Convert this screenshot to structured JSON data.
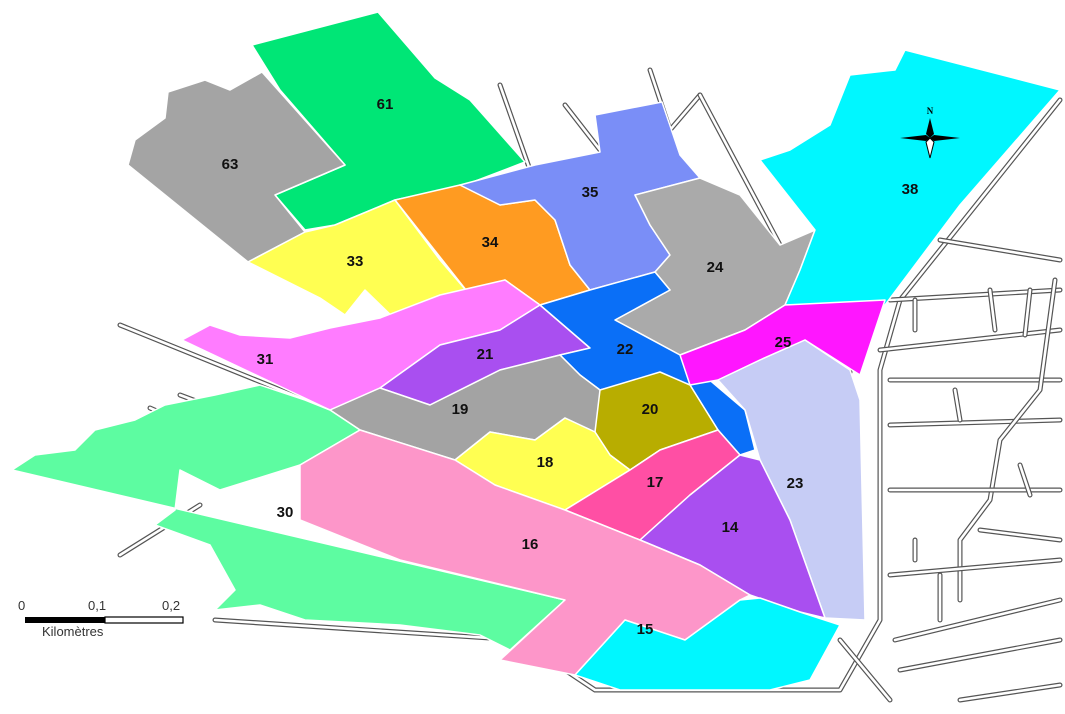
{
  "map": {
    "districts": [
      {
        "id": "61",
        "label": "61",
        "color": "#00e676"
      },
      {
        "id": "63",
        "label": "63",
        "color": "#a4a4a4"
      },
      {
        "id": "33",
        "label": "33",
        "color": "#ffff52"
      },
      {
        "id": "34",
        "label": "34",
        "color": "#ff9b21"
      },
      {
        "id": "35",
        "label": "35",
        "color": "#7a8ef7"
      },
      {
        "id": "24",
        "label": "24",
        "color": "#aaaaaa"
      },
      {
        "id": "38",
        "label": "38",
        "color": "#00f7ff"
      },
      {
        "id": "31",
        "label": "31",
        "color": "#ff7cff"
      },
      {
        "id": "21",
        "label": "21",
        "color": "#a94ff0"
      },
      {
        "id": "22",
        "label": "22",
        "color": "#0a6ff7"
      },
      {
        "id": "25",
        "label": "25",
        "color": "#ff16ff"
      },
      {
        "id": "19",
        "label": "19",
        "color": "#a3a3a3"
      },
      {
        "id": "20",
        "label": "20",
        "color": "#b8ad00"
      },
      {
        "id": "18",
        "label": "18",
        "color": "#ffff52"
      },
      {
        "id": "17",
        "label": "17",
        "color": "#ff4fa4"
      },
      {
        "id": "23",
        "label": "23",
        "color": "#c6ccf5"
      },
      {
        "id": "14",
        "label": "14",
        "color": "#a94ff0"
      },
      {
        "id": "30",
        "label": "30",
        "color": "#5dfca1"
      },
      {
        "id": "16",
        "label": "16",
        "color": "#fd96c9"
      },
      {
        "id": "15",
        "label": "15",
        "color": "#00f7ff"
      }
    ],
    "scale_bar": {
      "tick_0": "0",
      "tick_1": "0,1",
      "tick_2": "0,2",
      "unit": "Kilomètres"
    },
    "north_arrow": {
      "label": "N"
    }
  }
}
